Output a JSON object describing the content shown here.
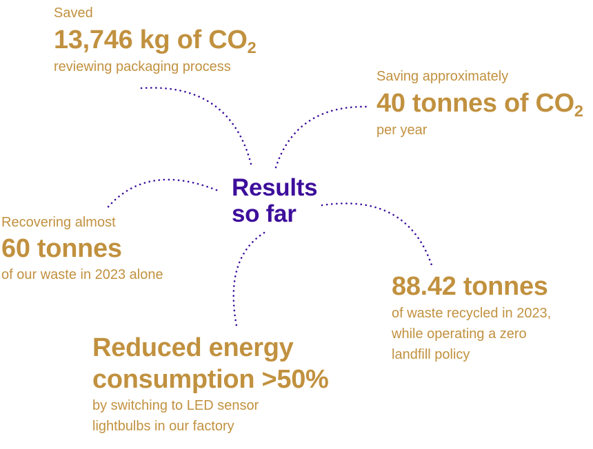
{
  "center": {
    "line1": "Results",
    "line2": "so far"
  },
  "results": [
    {
      "label": "Saved",
      "value": "13,746 kg of CO",
      "value_sub": "2",
      "desc": [
        "reviewing packaging process"
      ]
    },
    {
      "label": "Saving approximately",
      "value": "40 tonnes of CO",
      "value_sub": "2",
      "desc": [
        "per year"
      ]
    },
    {
      "label": "Recovering almost",
      "value": "60 tonnes",
      "desc": [
        "of our waste in 2023 alone"
      ]
    },
    {
      "value": "88.42 tonnes",
      "desc": [
        "of waste recycled in 2023,",
        "while operating a zero",
        "landfill policy"
      ]
    },
    {
      "value_lines": [
        "Reduced energy",
        "consumption >50%"
      ],
      "desc": [
        "by switching to LED sensor",
        "lightbulbs in our factory"
      ]
    }
  ],
  "colors": {
    "accent_gold": "#c1913f",
    "center_purple": "#3d0e9b",
    "connector": "#3a0a9c"
  }
}
